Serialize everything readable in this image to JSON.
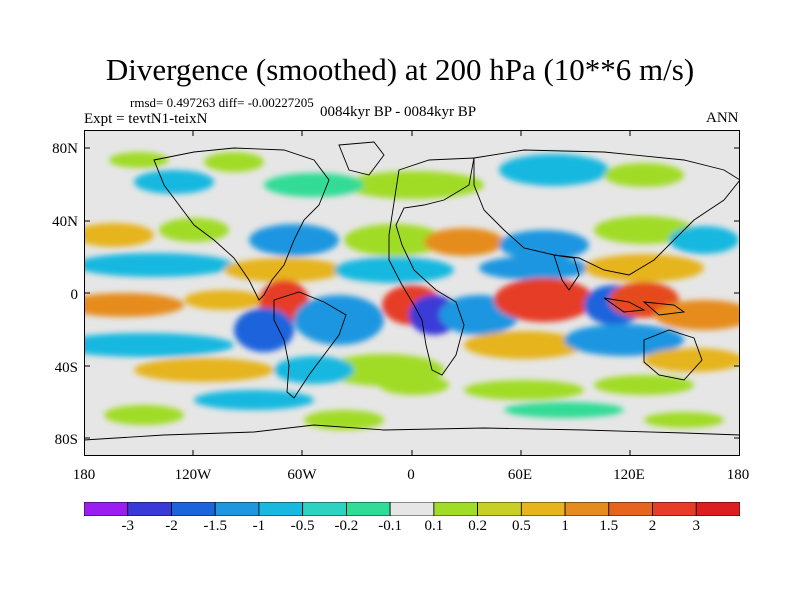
{
  "title": "Divergence (smoothed) at 200 hPa (10**6 m/s)",
  "stats": "rmsd= 0.497263 diff= -0.00227205",
  "experiment": "Expt = tevtN1-teixN",
  "period": "0084kyr BP - 0084kyr BP",
  "season": "ANN",
  "lat_labels": [
    "80N",
    "40N",
    "0",
    "40S",
    "80S"
  ],
  "lon_labels": [
    "180",
    "120W",
    "60W",
    "0",
    "60E",
    "120E",
    "180"
  ],
  "colorbar": {
    "labels": [
      "-3",
      "-2",
      "-1.5",
      "-1",
      "-0.5",
      "-0.2",
      "-0.1",
      "0.1",
      "0.2",
      "0.5",
      "1",
      "1.5",
      "2",
      "3"
    ],
    "colors": [
      "#9a1ef0",
      "#3a3ad8",
      "#1c64dc",
      "#1f96e0",
      "#19b8e0",
      "#2ed2c0",
      "#30dc96",
      "#e6e6e6",
      "#a0dc28",
      "#c8d028",
      "#e6b41e",
      "#e68c1e",
      "#e6641e",
      "#e63c28",
      "#dc1e1e"
    ]
  }
}
